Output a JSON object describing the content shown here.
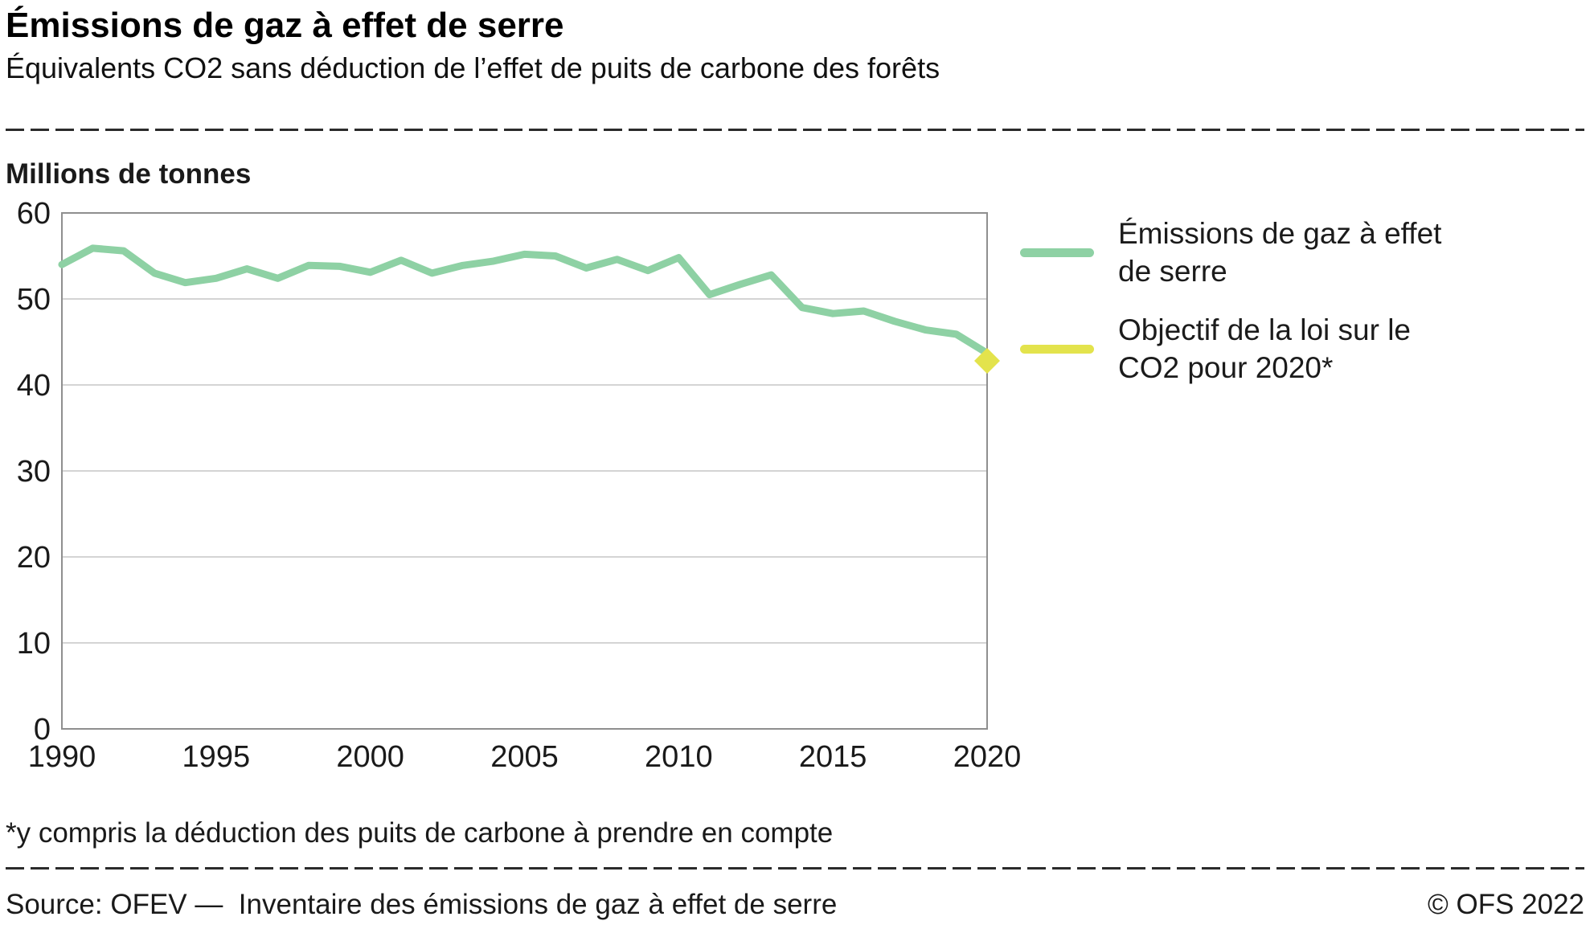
{
  "header": {
    "title": "Émissions de gaz à effet de serre",
    "subtitle": "Équivalents CO2 sans déduction de l’effet de puits de carbone des forêts"
  },
  "unit_label": "Millions de tonnes",
  "chart_data": {
    "type": "line",
    "title": "Émissions de gaz à effet de serre",
    "ylabel": "Millions de tonnes",
    "ylim": [
      0,
      60
    ],
    "yticks": [
      0,
      10,
      20,
      30,
      40,
      50,
      60
    ],
    "xticks": [
      1990,
      1995,
      2000,
      2005,
      2010,
      2015,
      2020
    ],
    "x": [
      1990,
      1991,
      1992,
      1993,
      1994,
      1995,
      1996,
      1997,
      1998,
      1999,
      2000,
      2001,
      2002,
      2003,
      2004,
      2005,
      2006,
      2007,
      2008,
      2009,
      2010,
      2011,
      2012,
      2013,
      2014,
      2015,
      2016,
      2017,
      2018,
      2019,
      2020
    ],
    "series": [
      {
        "name": "Émissions de gaz à effet de serre",
        "color": "#8ed1a4",
        "values": [
          54.0,
          55.9,
          55.6,
          53.0,
          51.9,
          52.4,
          53.5,
          52.4,
          53.9,
          53.8,
          53.1,
          54.5,
          53.0,
          53.9,
          54.4,
          55.2,
          55.0,
          53.6,
          54.6,
          53.3,
          54.8,
          50.5,
          51.7,
          52.8,
          49.0,
          48.3,
          48.6,
          47.4,
          46.4,
          45.9,
          43.7
        ]
      }
    ],
    "target": {
      "name": "Objectif de la loi sur le CO2 pour 2020*",
      "x": 2020,
      "value": 42.8,
      "color": "#e3e34c"
    },
    "grid": true,
    "legend_position": "right"
  },
  "legend": {
    "items": [
      {
        "label": "Émissions de gaz à effet de serre",
        "color": "#8ed1a4"
      },
      {
        "label": "Objectif de la loi sur le CO2 pour 2020*",
        "color": "#e3e34c"
      }
    ]
  },
  "footnote": "*y compris la déduction des puits de carbone à prendre en compte",
  "footer": {
    "source": "Source: OFEV —  Inventaire des émissions de gaz à effet de serre",
    "copyright": "© OFS 2022"
  }
}
